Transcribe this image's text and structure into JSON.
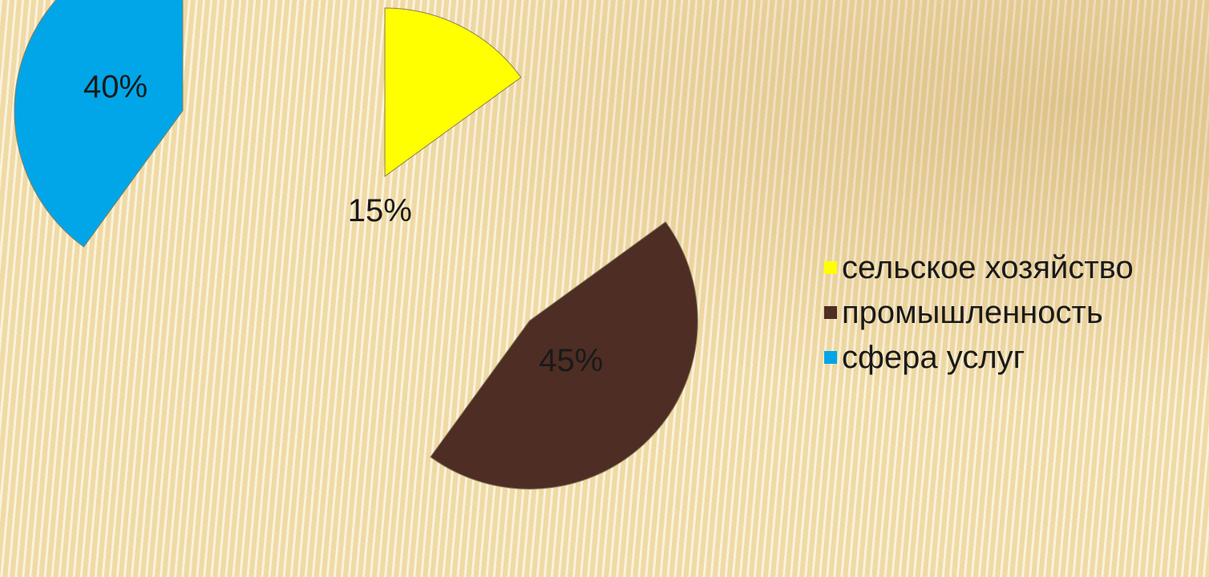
{
  "chart_data": {
    "type": "pie",
    "exploded": true,
    "categories": [
      "сельское хозяйство",
      "промышленность",
      "сфера услуг"
    ],
    "values": [
      15,
      45,
      40
    ],
    "value_unit": "%",
    "data_labels": [
      "15%",
      "45%",
      "40%"
    ],
    "colors": [
      "#ffff00",
      "#4e2d24",
      "#00a6e8"
    ],
    "legend_position": "right"
  },
  "legend": {
    "items": [
      {
        "label": "сельское хозяйство",
        "color": "#ffff00"
      },
      {
        "label": "промышленность",
        "color": "#4e2d24"
      },
      {
        "label": "сфера услуг",
        "color": "#00a6e8"
      }
    ]
  }
}
